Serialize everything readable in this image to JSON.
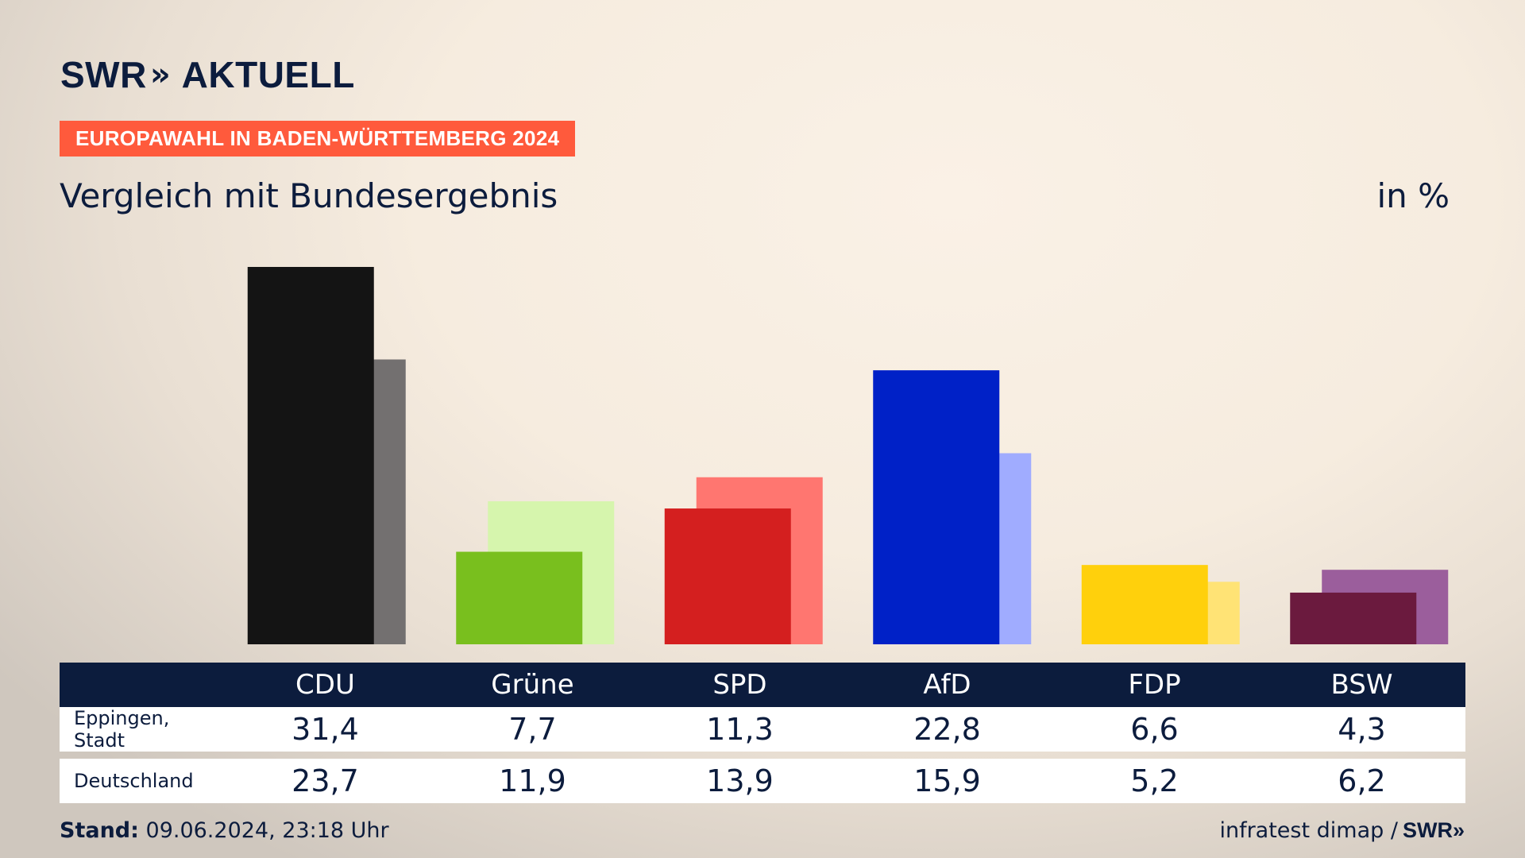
{
  "header": {
    "logo_text": "SWR",
    "logo_chevron": "»",
    "logo_suffix": "AKTUELL",
    "badge": "EUROPAWAHL IN BADEN-WÜRTTEMBERG 2024",
    "subtitle": "Vergleich mit Bundesergebnis",
    "unit": "in %"
  },
  "chart_data": {
    "type": "bar",
    "title": "Vergleich mit Bundesergebnis",
    "ylabel": "in %",
    "ylim": [
      0,
      31.4
    ],
    "categories": [
      "CDU",
      "Grüne",
      "SPD",
      "AfD",
      "FDP",
      "BSW"
    ],
    "series": [
      {
        "name": "Eppingen, Stadt",
        "values": [
          31.4,
          7.7,
          11.3,
          22.8,
          6.6,
          4.3
        ]
      },
      {
        "name": "Deutschland",
        "values": [
          23.7,
          11.9,
          13.9,
          15.9,
          5.2,
          6.2
        ]
      }
    ],
    "colors": {
      "primary": [
        "#141414",
        "#79bf1e",
        "#d41f1f",
        "#0021c7",
        "#ffd00c",
        "#6b1a3e"
      ],
      "comparison": [
        "#737070",
        "#d6f5ad",
        "#ff7670",
        "#a0acff",
        "#ffe375",
        "#9b5e9c"
      ]
    }
  },
  "table": {
    "rows": [
      {
        "label": "Eppingen, Stadt",
        "values": [
          "31,4",
          "7,7",
          "11,3",
          "22,8",
          "6,6",
          "4,3"
        ]
      },
      {
        "label": "Deutschland",
        "values": [
          "23,7",
          "11,9",
          "13,9",
          "15,9",
          "5,2",
          "6,2"
        ]
      }
    ]
  },
  "footer": {
    "stand_label": "Stand:",
    "stand_value": "09.06.2024, 23:18 Uhr",
    "source": "infratest dimap /",
    "source_logo": "SWR",
    "source_logo_chevron": "»"
  }
}
